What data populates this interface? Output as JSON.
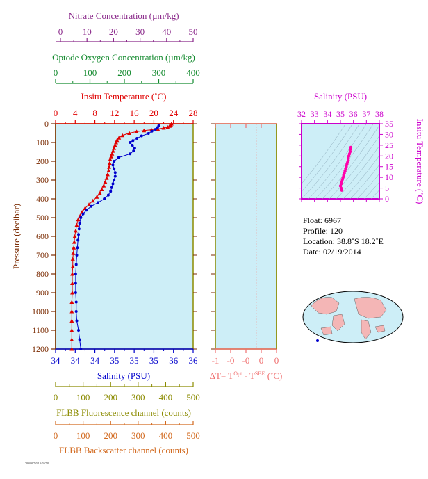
{
  "axes": {
    "nitrate": {
      "label": "Nitrate Concentration (µm/kg)",
      "ticks": [
        "0",
        "10",
        "20",
        "30",
        "40",
        "50"
      ],
      "color": "#8b2a8b"
    },
    "oxygen": {
      "label": "Optode Oxygen Concentration (µm/kg)",
      "ticks": [
        "0",
        "100",
        "200",
        "300",
        "400"
      ],
      "color": "#138a2e"
    },
    "temperature": {
      "label": "Insitu Temperature (˚C)",
      "ticks": [
        "0",
        "4",
        "8",
        "12",
        "16",
        "20",
        "24",
        "28"
      ],
      "color": "#e00000"
    },
    "pressure": {
      "label": "Pressure (decibar)",
      "ticks": [
        "0",
        "100",
        "200",
        "300",
        "400",
        "500",
        "600",
        "700",
        "800",
        "900",
        "1000",
        "1100",
        "1200"
      ],
      "color": "#7a2a00"
    },
    "salinity": {
      "label": "Salinity (PSU)",
      "ticks": [
        "34",
        "34",
        "34",
        "35",
        "35",
        "35",
        "36",
        "36"
      ],
      "color": "#0000cc"
    },
    "fluorescence": {
      "label": "FLBB Fluorescence channel (counts)",
      "ticks": [
        "0",
        "100",
        "200",
        "300",
        "400",
        "500"
      ],
      "color": "#8b8b00"
    },
    "backscatter": {
      "label": "FLBB Backscatter channel (counts)",
      "ticks": [
        "0",
        "100",
        "200",
        "300",
        "400",
        "500"
      ],
      "color": "#d2691e"
    },
    "delta_t": {
      "label_parts": [
        "ΔT= T",
        "Opt",
        " - T",
        "SBE",
        " (˚C)"
      ],
      "ticks": [
        "-1",
        "-0",
        "-0",
        "0",
        "0"
      ],
      "color": "#f07070"
    },
    "ts_salinity": {
      "label": "Salinity (PSU)",
      "ticks": [
        "32",
        "33",
        "34",
        "35",
        "36",
        "37",
        "38"
      ],
      "color": "#cc00cc"
    },
    "ts_temperature": {
      "label": "Insitu Temperature (˚C)",
      "ticks": [
        "0",
        "5",
        "10",
        "15",
        "20",
        "25",
        "30",
        "35"
      ],
      "color": "#cc00cc"
    }
  },
  "info": {
    "float": "Float:  6967",
    "profile": "Profile:  120",
    "location": "Location:  38.8˚S  18.2˚E",
    "date": "Date:  02/19/2014"
  },
  "footer_text": "7890987654 3456789",
  "chart_data": [
    {
      "type": "line",
      "name": "profile",
      "ylim": [
        1200,
        0
      ],
      "temperature_xlim": [
        0,
        28
      ],
      "salinity_xlim": [
        34,
        36.4
      ],
      "series": [
        {
          "name": "Insitu Temperature",
          "color": "#e00000",
          "marker": "triangle",
          "points": [
            [
              23.6,
              0
            ],
            [
              23.5,
              8
            ],
            [
              23.2,
              12
            ],
            [
              22.8,
              18
            ],
            [
              22,
              22
            ],
            [
              20.8,
              28
            ],
            [
              19.5,
              32
            ],
            [
              18,
              36
            ],
            [
              16.5,
              42
            ],
            [
              15,
              50
            ],
            [
              13.6,
              62
            ],
            [
              12.9,
              75
            ],
            [
              12.5,
              88
            ],
            [
              12.3,
              100
            ],
            [
              12.1,
              115
            ],
            [
              11.9,
              130
            ],
            [
              11.7,
              145
            ],
            [
              11.5,
              160
            ],
            [
              11.3,
              175
            ],
            [
              11.1,
              190
            ],
            [
              11,
              210
            ],
            [
              10.9,
              230
            ],
            [
              10.8,
              250
            ],
            [
              10.6,
              270
            ],
            [
              10.4,
              290
            ],
            [
              10.1,
              310
            ],
            [
              9.8,
              330
            ],
            [
              9.4,
              350
            ],
            [
              9,
              370
            ],
            [
              8.4,
              390
            ],
            [
              7.6,
              410
            ],
            [
              6.8,
              430
            ],
            [
              6,
              450
            ],
            [
              5.4,
              470
            ],
            [
              5,
              490
            ],
            [
              4.6,
              510
            ],
            [
              4.3,
              540
            ],
            [
              4.1,
              570
            ],
            [
              3.9,
              600
            ],
            [
              3.8,
              630
            ],
            [
              3.7,
              660
            ],
            [
              3.6,
              690
            ],
            [
              3.5,
              720
            ],
            [
              3.5,
              760
            ],
            [
              3.4,
              800
            ],
            [
              3.4,
              850
            ],
            [
              3.4,
              900
            ],
            [
              3.3,
              950
            ],
            [
              3.3,
              1000
            ],
            [
              3.3,
              1050
            ],
            [
              3.3,
              1100
            ],
            [
              3.3,
              1150
            ],
            [
              3.3,
              1200
            ]
          ]
        },
        {
          "name": "Salinity",
          "color": "#0000cc",
          "marker": "circle",
          "points": [
            [
              35.8,
              10
            ],
            [
              35.78,
              20
            ],
            [
              35.74,
              30
            ],
            [
              35.68,
              40
            ],
            [
              35.62,
              52
            ],
            [
              35.5,
              65
            ],
            [
              35.42,
              78
            ],
            [
              35.35,
              90
            ],
            [
              35.3,
              100
            ],
            [
              35.34,
              115
            ],
            [
              35.38,
              130
            ],
            [
              35.36,
              145
            ],
            [
              35.3,
              160
            ],
            [
              35.1,
              180
            ],
            [
              35.02,
              200
            ],
            [
              35,
              220
            ],
            [
              35.02,
              240
            ],
            [
              35.04,
              260
            ],
            [
              35.04,
              280
            ],
            [
              35.02,
              300
            ],
            [
              35,
              320
            ],
            [
              34.98,
              340
            ],
            [
              34.96,
              360
            ],
            [
              34.92,
              380
            ],
            [
              34.85,
              400
            ],
            [
              34.74,
              420
            ],
            [
              34.62,
              440
            ],
            [
              34.54,
              460
            ],
            [
              34.48,
              480
            ],
            [
              34.44,
              500
            ],
            [
              34.42,
              530
            ],
            [
              34.41,
              560
            ],
            [
              34.4,
              590
            ],
            [
              34.39,
              620
            ],
            [
              34.38,
              660
            ],
            [
              34.37,
              700
            ],
            [
              34.36,
              750
            ],
            [
              34.35,
              800
            ],
            [
              34.35,
              850
            ],
            [
              34.35,
              900
            ],
            [
              34.36,
              950
            ],
            [
              34.36,
              1000
            ],
            [
              34.37,
              1050
            ],
            [
              34.4,
              1100
            ],
            [
              34.42,
              1150
            ],
            [
              34.44,
              1200
            ]
          ]
        }
      ]
    },
    {
      "type": "scatter",
      "name": "ts_diagram",
      "xlim": [
        32,
        38
      ],
      "ylim": [
        0,
        35
      ],
      "series": [
        {
          "name": "TS",
          "color": "#ff00aa",
          "points": [
            [
              35.1,
              4
            ],
            [
              35.05,
              5
            ],
            [
              35.0,
              6
            ],
            [
              35.05,
              7
            ],
            [
              35.1,
              8
            ],
            [
              35.15,
              9
            ],
            [
              35.2,
              10
            ],
            [
              35.25,
              11
            ],
            [
              35.3,
              12
            ],
            [
              35.35,
              13
            ],
            [
              35.4,
              14
            ],
            [
              35.45,
              15
            ],
            [
              35.5,
              16
            ],
            [
              35.55,
              17
            ],
            [
              35.6,
              18
            ],
            [
              35.6,
              19
            ],
            [
              35.65,
              20
            ],
            [
              35.7,
              21
            ],
            [
              35.75,
              22
            ],
            [
              35.75,
              23
            ],
            [
              35.8,
              24
            ]
          ]
        }
      ]
    }
  ]
}
